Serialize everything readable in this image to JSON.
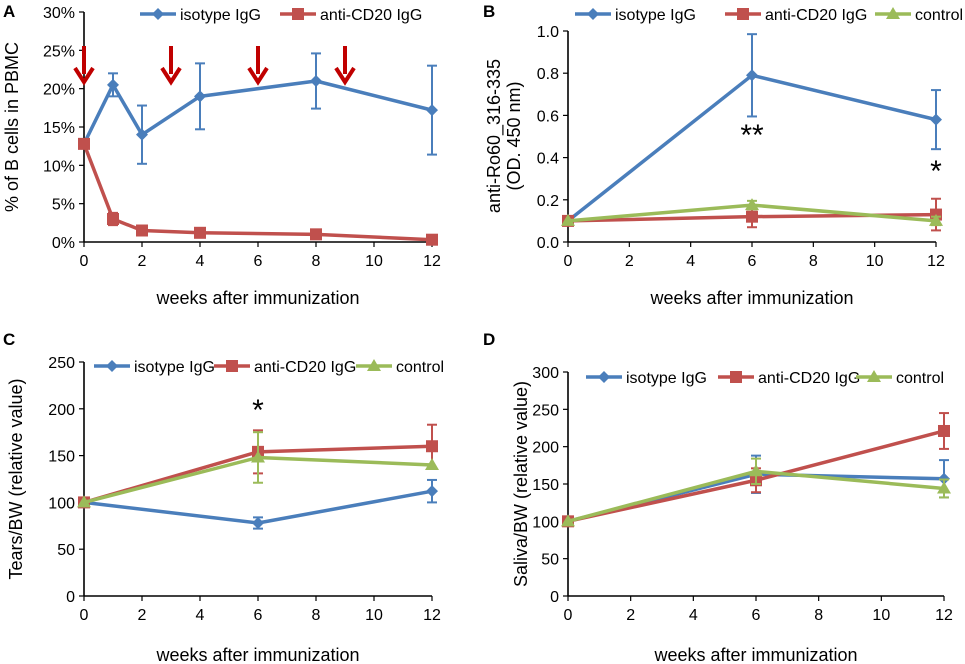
{
  "colors": {
    "isotype": "#4a7ebb",
    "antiCD20": "#c0504d",
    "control": "#9bbb59",
    "arrow": "#c00000",
    "axis": "#000000"
  },
  "chart_data": [
    {
      "panel": "A",
      "type": "line",
      "xlabel": "weeks after immunization",
      "ylabel": "% of B cells in PBMC",
      "xlim": [
        0,
        12
      ],
      "xticks": [
        "0",
        "2",
        "4",
        "6",
        "8",
        "10",
        "12"
      ],
      "ylim": [
        0,
        30
      ],
      "yticks": [
        "0%",
        "5%",
        "10%",
        "15%",
        "20%",
        "25%",
        "30%"
      ],
      "legend": [
        {
          "name": "isotype IgG",
          "key": "isotype",
          "marker": "diamond"
        },
        {
          "name": "anti-CD20 IgG",
          "key": "antiCD20",
          "marker": "square"
        }
      ],
      "series": [
        {
          "name": "isotype IgG",
          "key": "isotype",
          "marker": "diamond",
          "x": [
            0,
            1,
            2,
            4,
            8,
            12
          ],
          "y": [
            12.8,
            20.5,
            14.0,
            19.0,
            21.0,
            17.2
          ],
          "err": [
            0,
            1.5,
            3.8,
            4.3,
            3.6,
            5.8
          ]
        },
        {
          "name": "anti-CD20 IgG",
          "key": "antiCD20",
          "marker": "square",
          "x": [
            0,
            1,
            2,
            4,
            8,
            12
          ],
          "y": [
            12.8,
            3.0,
            1.5,
            1.2,
            1.0,
            0.3
          ],
          "err": [
            0,
            0.8,
            0,
            0,
            0,
            0
          ]
        }
      ],
      "arrows_at_weeks": [
        0,
        3,
        6,
        9
      ],
      "annotations": []
    },
    {
      "panel": "B",
      "type": "line",
      "xlabel": "weeks after immunization",
      "ylabel": "anti-Ro60_316-335",
      "ylabel2": "(OD. 450 nm)",
      "xlim": [
        0,
        12
      ],
      "xticks": [
        "0",
        "2",
        "4",
        "6",
        "8",
        "10",
        "12"
      ],
      "ylim": [
        0,
        1.0
      ],
      "yticks": [
        "0.0",
        "0.2",
        "0.4",
        "0.6",
        "0.8",
        "1.0"
      ],
      "legend": [
        {
          "name": "isotype IgG",
          "key": "isotype",
          "marker": "diamond"
        },
        {
          "name": "anti-CD20 IgG",
          "key": "antiCD20",
          "marker": "square"
        },
        {
          "name": "control",
          "key": "control",
          "marker": "triangle"
        }
      ],
      "series": [
        {
          "name": "isotype IgG",
          "key": "isotype",
          "marker": "diamond",
          "x": [
            0,
            6,
            12
          ],
          "y": [
            0.1,
            0.79,
            0.58
          ],
          "err": [
            0,
            0.195,
            0.14
          ]
        },
        {
          "name": "anti-CD20 IgG",
          "key": "antiCD20",
          "marker": "square",
          "x": [
            0,
            6,
            12
          ],
          "y": [
            0.1,
            0.12,
            0.13
          ],
          "err": [
            0,
            0.05,
            0.075
          ]
        },
        {
          "name": "control",
          "key": "control",
          "marker": "triangle",
          "x": [
            0,
            6,
            12
          ],
          "y": [
            0.1,
            0.175,
            0.1
          ],
          "err": [
            0,
            0.02,
            0.02
          ]
        }
      ],
      "annotations": [
        {
          "text": "**",
          "x": 6,
          "y": 0.46
        },
        {
          "text": "*",
          "x": 12,
          "y": 0.29
        }
      ]
    },
    {
      "panel": "C",
      "type": "line",
      "xlabel": "weeks after immunization",
      "ylabel": "Tears/BW (relative value)",
      "xlim": [
        0,
        12
      ],
      "xticks": [
        "0",
        "2",
        "4",
        "6",
        "8",
        "10",
        "12"
      ],
      "ylim": [
        0,
        250
      ],
      "yticks": [
        "0",
        "50",
        "100",
        "150",
        "200",
        "250"
      ],
      "legend": [
        {
          "name": "isotype IgG",
          "key": "isotype",
          "marker": "diamond"
        },
        {
          "name": "anti-CD20 IgG",
          "key": "antiCD20",
          "marker": "square"
        },
        {
          "name": "control",
          "key": "control",
          "marker": "triangle"
        }
      ],
      "series": [
        {
          "name": "isotype IgG",
          "key": "isotype",
          "marker": "diamond",
          "x": [
            0,
            6,
            12
          ],
          "y": [
            100,
            78,
            112
          ],
          "err": [
            0,
            6,
            12
          ]
        },
        {
          "name": "anti-CD20 IgG",
          "key": "antiCD20",
          "marker": "square",
          "x": [
            0,
            6,
            12
          ],
          "y": [
            100,
            154,
            160
          ],
          "err": [
            0,
            23,
            23
          ]
        },
        {
          "name": "control",
          "key": "control",
          "marker": "triangle",
          "x": [
            0,
            6,
            12
          ],
          "y": [
            100,
            148,
            140
          ],
          "err": [
            0,
            27,
            0
          ]
        }
      ],
      "annotations": [
        {
          "text": "*",
          "x": 6,
          "y": 188
        }
      ]
    },
    {
      "panel": "D",
      "type": "line",
      "xlabel": "weeks after immunization",
      "ylabel": "Saliva/BW (relative value)",
      "xlim": [
        0,
        12
      ],
      "xticks": [
        "0",
        "2",
        "4",
        "6",
        "8",
        "10",
        "12"
      ],
      "ylim": [
        0,
        300
      ],
      "yticks": [
        "0",
        "50",
        "100",
        "150",
        "200",
        "250",
        "300"
      ],
      "legend": [
        {
          "name": "isotype IgG",
          "key": "isotype",
          "marker": "diamond"
        },
        {
          "name": "anti-CD20 IgG",
          "key": "antiCD20",
          "marker": "square"
        },
        {
          "name": "control",
          "key": "control",
          "marker": "triangle"
        }
      ],
      "series": [
        {
          "name": "isotype IgG",
          "key": "isotype",
          "marker": "diamond",
          "x": [
            0,
            6,
            12
          ],
          "y": [
            100,
            163,
            157
          ],
          "err": [
            0,
            25,
            25
          ]
        },
        {
          "name": "anti-CD20 IgG",
          "key": "antiCD20",
          "marker": "square",
          "x": [
            0,
            6,
            12
          ],
          "y": [
            100,
            155,
            221
          ],
          "err": [
            0,
            16,
            24
          ]
        },
        {
          "name": "control",
          "key": "control",
          "marker": "triangle",
          "x": [
            0,
            6,
            12
          ],
          "y": [
            100,
            167,
            144
          ],
          "err": [
            0,
            17,
            12
          ]
        }
      ],
      "annotations": []
    }
  ]
}
